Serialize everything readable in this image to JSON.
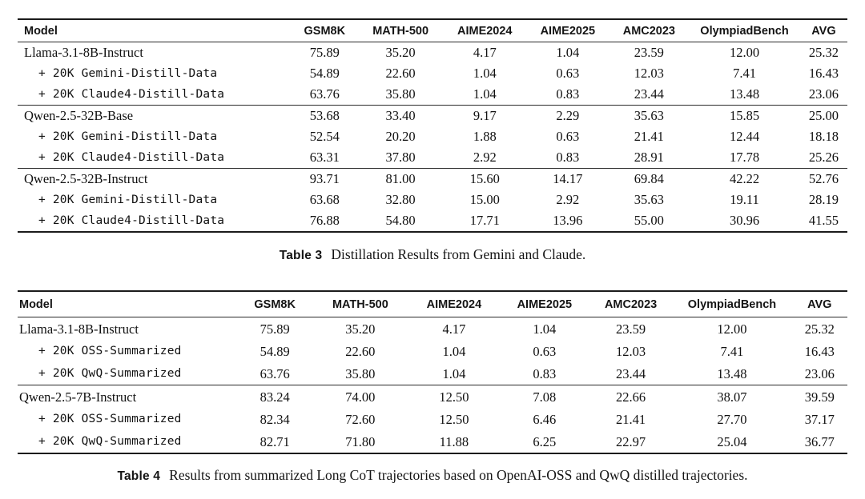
{
  "tables": [
    {
      "caption_label": "Table 3",
      "caption_text": "Distillation Results from Gemini and Claude.",
      "columns": [
        "Model",
        "GSM8K",
        "MATH-500",
        "AIME2024",
        "AIME2025",
        "AMC2023",
        "OlympiadBench",
        "AVG"
      ],
      "groups": [
        {
          "rows": [
            {
              "model": "Llama-3.1-8B-Instruct",
              "mono": false,
              "values": [
                "75.89",
                "35.20",
                "4.17",
                "1.04",
                "23.59",
                "12.00",
                "25.32"
              ]
            },
            {
              "model": "+ 20K Gemini-Distill-Data",
              "mono": true,
              "values": [
                "54.89",
                "22.60",
                "1.04",
                "0.63",
                "12.03",
                "7.41",
                "16.43"
              ]
            },
            {
              "model": "+ 20K Claude4-Distill-Data",
              "mono": true,
              "values": [
                "63.76",
                "35.80",
                "1.04",
                "0.83",
                "23.44",
                "13.48",
                "23.06"
              ]
            }
          ]
        },
        {
          "rows": [
            {
              "model": "Qwen-2.5-32B-Base",
              "mono": false,
              "values": [
                "53.68",
                "33.40",
                "9.17",
                "2.29",
                "35.63",
                "15.85",
                "25.00"
              ]
            },
            {
              "model": "+ 20K Gemini-Distill-Data",
              "mono": true,
              "values": [
                "52.54",
                "20.20",
                "1.88",
                "0.63",
                "21.41",
                "12.44",
                "18.18"
              ]
            },
            {
              "model": "+ 20K Claude4-Distill-Data",
              "mono": true,
              "values": [
                "63.31",
                "37.80",
                "2.92",
                "0.83",
                "28.91",
                "17.78",
                "25.26"
              ]
            }
          ]
        },
        {
          "rows": [
            {
              "model": "Qwen-2.5-32B-Instruct",
              "mono": false,
              "values": [
                "93.71",
                "81.00",
                "15.60",
                "14.17",
                "69.84",
                "42.22",
                "52.76"
              ]
            },
            {
              "model": "+ 20K Gemini-Distill-Data",
              "mono": true,
              "values": [
                "63.68",
                "32.80",
                "15.00",
                "2.92",
                "35.63",
                "19.11",
                "28.19"
              ]
            },
            {
              "model": "+ 20K Claude4-Distill-Data",
              "mono": true,
              "values": [
                "76.88",
                "54.80",
                "17.71",
                "13.96",
                "55.00",
                "30.96",
                "41.55"
              ]
            }
          ]
        }
      ]
    },
    {
      "caption_label": "Table 4",
      "caption_text": "Results from summarized Long CoT trajectories based on OpenAI-OSS and QwQ distilled trajectories.",
      "columns": [
        "Model",
        "GSM8K",
        "MATH-500",
        "AIME2024",
        "AIME2025",
        "AMC2023",
        "OlympiadBench",
        "AVG"
      ],
      "groups": [
        {
          "rows": [
            {
              "model": "Llama-3.1-8B-Instruct",
              "mono": false,
              "values": [
                "75.89",
                "35.20",
                "4.17",
                "1.04",
                "23.59",
                "12.00",
                "25.32"
              ]
            },
            {
              "model": "+ 20K OSS-Summarized",
              "mono": true,
              "values": [
                "54.89",
                "22.60",
                "1.04",
                "0.63",
                "12.03",
                "7.41",
                "16.43"
              ]
            },
            {
              "model": "+ 20K QwQ-Summarized",
              "mono": true,
              "values": [
                "63.76",
                "35.80",
                "1.04",
                "0.83",
                "23.44",
                "13.48",
                "23.06"
              ]
            }
          ]
        },
        {
          "rows": [
            {
              "model": "Qwen-2.5-7B-Instruct",
              "mono": false,
              "values": [
                "83.24",
                "74.00",
                "12.50",
                "7.08",
                "22.66",
                "38.07",
                "39.59"
              ]
            },
            {
              "model": "+ 20K OSS-Summarized",
              "mono": true,
              "values": [
                "82.34",
                "72.60",
                "12.50",
                "6.46",
                "21.41",
                "27.70",
                "37.17"
              ]
            },
            {
              "model": "+ 20K QwQ-Summarized",
              "mono": true,
              "values": [
                "82.71",
                "71.80",
                "11.88",
                "6.25",
                "22.97",
                "25.04",
                "36.77"
              ]
            }
          ]
        }
      ]
    }
  ]
}
